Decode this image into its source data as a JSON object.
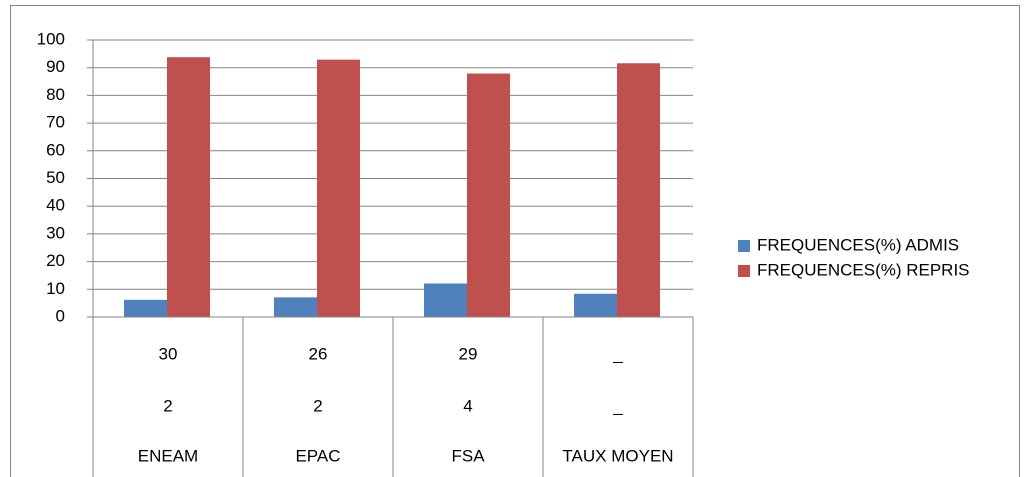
{
  "chart_data": {
    "type": "bar",
    "categories": [
      [
        "30",
        "2",
        "ENEAM"
      ],
      [
        "26",
        "2",
        "EPAC"
      ],
      [
        "29",
        "4",
        "FSA"
      ],
      [
        "_",
        "_",
        "TAUX MOYEN"
      ]
    ],
    "series": [
      {
        "name": "FREQUENCES(%) ADMIS",
        "color": "#4f81bd",
        "values": [
          6.2,
          7.1,
          12.1,
          8.4
        ]
      },
      {
        "name": "FREQUENCES(%) REPRIS",
        "color": "#c0504d",
        "values": [
          93.8,
          92.9,
          87.9,
          91.6
        ]
      }
    ],
    "ylim": [
      0,
      100
    ],
    "yticks": [
      0,
      10,
      20,
      30,
      40,
      50,
      60,
      70,
      80,
      90,
      100
    ],
    "grid": true,
    "legend": "right"
  }
}
